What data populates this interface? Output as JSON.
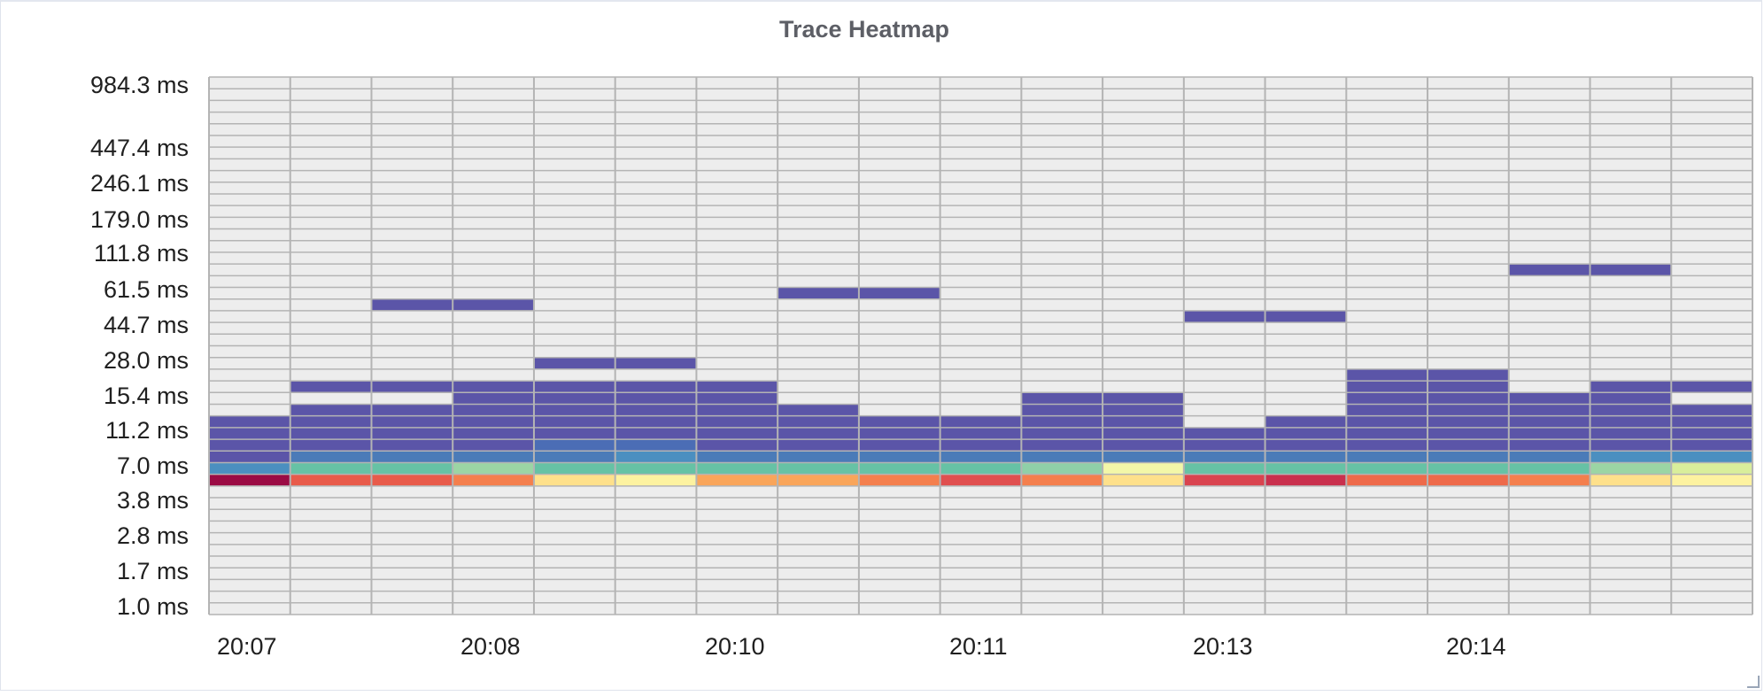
{
  "panel": {
    "title": "Trace Heatmap"
  },
  "chart_data": {
    "type": "heatmap",
    "title": "Trace Heatmap",
    "xlabel": "",
    "ylabel": "",
    "grid": true,
    "legend": "none",
    "y_tick_labels": [
      "1.0 ms",
      "1.7 ms",
      "2.8 ms",
      "3.8 ms",
      "7.0 ms",
      "11.2 ms",
      "15.4 ms",
      "28.0 ms",
      "44.7 ms",
      "61.5 ms",
      "111.8 ms",
      "179.0 ms",
      "246.1 ms",
      "447.4 ms",
      "984.3 ms"
    ],
    "x_tick_labels": [
      "20:07",
      "20:08",
      "20:10",
      "20:11",
      "20:13",
      "20:14"
    ],
    "bucket_count": 46,
    "time_columns": 19,
    "empty_color": "#ededed",
    "cells_note_col_index_base": 0,
    "cells": [
      {
        "col": 0,
        "row": 11,
        "color": "#9b0b44"
      },
      {
        "col": 0,
        "row": 12,
        "color": "#4b8fc0"
      },
      {
        "col": 0,
        "row": 13,
        "color": "#5b55a8"
      },
      {
        "col": 0,
        "row": 14,
        "color": "#5b55a8"
      },
      {
        "col": 0,
        "row": 15,
        "color": "#5b55a8"
      },
      {
        "col": 0,
        "row": 16,
        "color": "#5b55a8"
      },
      {
        "col": 1,
        "row": 11,
        "color": "#e85b4a"
      },
      {
        "col": 1,
        "row": 12,
        "color": "#66c2a5"
      },
      {
        "col": 1,
        "row": 13,
        "color": "#4b7bb8"
      },
      {
        "col": 1,
        "row": 14,
        "color": "#5b55a8"
      },
      {
        "col": 1,
        "row": 15,
        "color": "#5b55a8"
      },
      {
        "col": 1,
        "row": 16,
        "color": "#5b55a8"
      },
      {
        "col": 1,
        "row": 17,
        "color": "#5b55a8"
      },
      {
        "col": 1,
        "row": 19,
        "color": "#5b55a8"
      },
      {
        "col": 2,
        "row": 11,
        "color": "#e85b4a"
      },
      {
        "col": 2,
        "row": 12,
        "color": "#66c2a5"
      },
      {
        "col": 2,
        "row": 13,
        "color": "#4b7bb8"
      },
      {
        "col": 2,
        "row": 14,
        "color": "#5b55a8"
      },
      {
        "col": 2,
        "row": 15,
        "color": "#5b55a8"
      },
      {
        "col": 2,
        "row": 16,
        "color": "#5b55a8"
      },
      {
        "col": 2,
        "row": 17,
        "color": "#5b55a8"
      },
      {
        "col": 2,
        "row": 19,
        "color": "#5b55a8"
      },
      {
        "col": 2,
        "row": 26,
        "color": "#5b55a8"
      },
      {
        "col": 3,
        "row": 11,
        "color": "#f47f4d"
      },
      {
        "col": 3,
        "row": 12,
        "color": "#9bd5a4"
      },
      {
        "col": 3,
        "row": 13,
        "color": "#4b7bb8"
      },
      {
        "col": 3,
        "row": 14,
        "color": "#5b55a8"
      },
      {
        "col": 3,
        "row": 15,
        "color": "#5b55a8"
      },
      {
        "col": 3,
        "row": 16,
        "color": "#5b55a8"
      },
      {
        "col": 3,
        "row": 17,
        "color": "#5b55a8"
      },
      {
        "col": 3,
        "row": 18,
        "color": "#5b55a8"
      },
      {
        "col": 3,
        "row": 19,
        "color": "#5b55a8"
      },
      {
        "col": 3,
        "row": 26,
        "color": "#5b55a8"
      },
      {
        "col": 4,
        "row": 11,
        "color": "#fee08b"
      },
      {
        "col": 4,
        "row": 12,
        "color": "#66c2a5"
      },
      {
        "col": 4,
        "row": 13,
        "color": "#4b7bb8"
      },
      {
        "col": 4,
        "row": 14,
        "color": "#4b6db5"
      },
      {
        "col": 4,
        "row": 15,
        "color": "#5b55a8"
      },
      {
        "col": 4,
        "row": 16,
        "color": "#5b55a8"
      },
      {
        "col": 4,
        "row": 17,
        "color": "#5b55a8"
      },
      {
        "col": 4,
        "row": 18,
        "color": "#5b55a8"
      },
      {
        "col": 4,
        "row": 19,
        "color": "#5b55a8"
      },
      {
        "col": 4,
        "row": 21,
        "color": "#5b55a8"
      },
      {
        "col": 5,
        "row": 11,
        "color": "#fdf2a0"
      },
      {
        "col": 5,
        "row": 12,
        "color": "#66c2a5"
      },
      {
        "col": 5,
        "row": 13,
        "color": "#4b8fc0"
      },
      {
        "col": 5,
        "row": 14,
        "color": "#4b6db5"
      },
      {
        "col": 5,
        "row": 15,
        "color": "#5b55a8"
      },
      {
        "col": 5,
        "row": 16,
        "color": "#5b55a8"
      },
      {
        "col": 5,
        "row": 17,
        "color": "#5b55a8"
      },
      {
        "col": 5,
        "row": 18,
        "color": "#5b55a8"
      },
      {
        "col": 5,
        "row": 19,
        "color": "#5b55a8"
      },
      {
        "col": 5,
        "row": 21,
        "color": "#5b55a8"
      },
      {
        "col": 6,
        "row": 11,
        "color": "#f9a55a"
      },
      {
        "col": 6,
        "row": 12,
        "color": "#66c2a5"
      },
      {
        "col": 6,
        "row": 13,
        "color": "#4b7bb8"
      },
      {
        "col": 6,
        "row": 14,
        "color": "#5b55a8"
      },
      {
        "col": 6,
        "row": 15,
        "color": "#5b55a8"
      },
      {
        "col": 6,
        "row": 16,
        "color": "#5b55a8"
      },
      {
        "col": 6,
        "row": 17,
        "color": "#5b55a8"
      },
      {
        "col": 6,
        "row": 18,
        "color": "#5b55a8"
      },
      {
        "col": 6,
        "row": 19,
        "color": "#5b55a8"
      },
      {
        "col": 7,
        "row": 11,
        "color": "#f9a55a"
      },
      {
        "col": 7,
        "row": 12,
        "color": "#66c2a5"
      },
      {
        "col": 7,
        "row": 13,
        "color": "#4b7bb8"
      },
      {
        "col": 7,
        "row": 14,
        "color": "#5b55a8"
      },
      {
        "col": 7,
        "row": 15,
        "color": "#5b55a8"
      },
      {
        "col": 7,
        "row": 16,
        "color": "#5b55a8"
      },
      {
        "col": 7,
        "row": 17,
        "color": "#5b55a8"
      },
      {
        "col": 7,
        "row": 27,
        "color": "#5b55a8"
      },
      {
        "col": 8,
        "row": 11,
        "color": "#f47f4d"
      },
      {
        "col": 8,
        "row": 12,
        "color": "#66c2a5"
      },
      {
        "col": 8,
        "row": 13,
        "color": "#4b7bb8"
      },
      {
        "col": 8,
        "row": 14,
        "color": "#5b55a8"
      },
      {
        "col": 8,
        "row": 15,
        "color": "#5b55a8"
      },
      {
        "col": 8,
        "row": 16,
        "color": "#5b55a8"
      },
      {
        "col": 8,
        "row": 27,
        "color": "#5b55a8"
      },
      {
        "col": 9,
        "row": 11,
        "color": "#e04f4f"
      },
      {
        "col": 9,
        "row": 12,
        "color": "#66c2a5"
      },
      {
        "col": 9,
        "row": 13,
        "color": "#4b7bb8"
      },
      {
        "col": 9,
        "row": 14,
        "color": "#5b55a8"
      },
      {
        "col": 9,
        "row": 15,
        "color": "#5b55a8"
      },
      {
        "col": 9,
        "row": 16,
        "color": "#5b55a8"
      },
      {
        "col": 10,
        "row": 11,
        "color": "#f47f4d"
      },
      {
        "col": 10,
        "row": 12,
        "color": "#8fd0a8"
      },
      {
        "col": 10,
        "row": 13,
        "color": "#4b7bb8"
      },
      {
        "col": 10,
        "row": 14,
        "color": "#5b55a8"
      },
      {
        "col": 10,
        "row": 15,
        "color": "#5b55a8"
      },
      {
        "col": 10,
        "row": 16,
        "color": "#5b55a8"
      },
      {
        "col": 10,
        "row": 17,
        "color": "#5b55a8"
      },
      {
        "col": 10,
        "row": 18,
        "color": "#5b55a8"
      },
      {
        "col": 11,
        "row": 11,
        "color": "#fee08b"
      },
      {
        "col": 11,
        "row": 12,
        "color": "#f3f7a8"
      },
      {
        "col": 11,
        "row": 13,
        "color": "#4b7bb8"
      },
      {
        "col": 11,
        "row": 14,
        "color": "#5b55a8"
      },
      {
        "col": 11,
        "row": 15,
        "color": "#5b55a8"
      },
      {
        "col": 11,
        "row": 16,
        "color": "#5b55a8"
      },
      {
        "col": 11,
        "row": 17,
        "color": "#5b55a8"
      },
      {
        "col": 11,
        "row": 18,
        "color": "#5b55a8"
      },
      {
        "col": 12,
        "row": 11,
        "color": "#d9444f"
      },
      {
        "col": 12,
        "row": 12,
        "color": "#66c2a5"
      },
      {
        "col": 12,
        "row": 13,
        "color": "#4b7bb8"
      },
      {
        "col": 12,
        "row": 14,
        "color": "#5b55a8"
      },
      {
        "col": 12,
        "row": 15,
        "color": "#5b55a8"
      },
      {
        "col": 12,
        "row": 25,
        "color": "#5b55a8"
      },
      {
        "col": 13,
        "row": 11,
        "color": "#c9304d"
      },
      {
        "col": 13,
        "row": 12,
        "color": "#66c2a5"
      },
      {
        "col": 13,
        "row": 13,
        "color": "#4b7bb8"
      },
      {
        "col": 13,
        "row": 14,
        "color": "#5b55a8"
      },
      {
        "col": 13,
        "row": 15,
        "color": "#5b55a8"
      },
      {
        "col": 13,
        "row": 16,
        "color": "#5b55a8"
      },
      {
        "col": 13,
        "row": 25,
        "color": "#5b55a8"
      },
      {
        "col": 14,
        "row": 11,
        "color": "#ee6a4a"
      },
      {
        "col": 14,
        "row": 12,
        "color": "#66c2a5"
      },
      {
        "col": 14,
        "row": 13,
        "color": "#4b7bb8"
      },
      {
        "col": 14,
        "row": 14,
        "color": "#5b55a8"
      },
      {
        "col": 14,
        "row": 15,
        "color": "#5b55a8"
      },
      {
        "col": 14,
        "row": 16,
        "color": "#5b55a8"
      },
      {
        "col": 14,
        "row": 17,
        "color": "#5b55a8"
      },
      {
        "col": 14,
        "row": 18,
        "color": "#5b55a8"
      },
      {
        "col": 14,
        "row": 19,
        "color": "#5b55a8"
      },
      {
        "col": 14,
        "row": 20,
        "color": "#5b55a8"
      },
      {
        "col": 15,
        "row": 11,
        "color": "#ee6a4a"
      },
      {
        "col": 15,
        "row": 12,
        "color": "#66c2a5"
      },
      {
        "col": 15,
        "row": 13,
        "color": "#4b7bb8"
      },
      {
        "col": 15,
        "row": 14,
        "color": "#5b55a8"
      },
      {
        "col": 15,
        "row": 15,
        "color": "#5b55a8"
      },
      {
        "col": 15,
        "row": 16,
        "color": "#5b55a8"
      },
      {
        "col": 15,
        "row": 17,
        "color": "#5b55a8"
      },
      {
        "col": 15,
        "row": 18,
        "color": "#5b55a8"
      },
      {
        "col": 15,
        "row": 19,
        "color": "#5b55a8"
      },
      {
        "col": 15,
        "row": 20,
        "color": "#5b55a8"
      },
      {
        "col": 16,
        "row": 11,
        "color": "#f47f4d"
      },
      {
        "col": 16,
        "row": 12,
        "color": "#66c2a5"
      },
      {
        "col": 16,
        "row": 13,
        "color": "#4b7bb8"
      },
      {
        "col": 16,
        "row": 14,
        "color": "#5b55a8"
      },
      {
        "col": 16,
        "row": 15,
        "color": "#5b55a8"
      },
      {
        "col": 16,
        "row": 16,
        "color": "#5b55a8"
      },
      {
        "col": 16,
        "row": 17,
        "color": "#5b55a8"
      },
      {
        "col": 16,
        "row": 18,
        "color": "#5b55a8"
      },
      {
        "col": 16,
        "row": 29,
        "color": "#5b55a8"
      },
      {
        "col": 17,
        "row": 11,
        "color": "#fee08b"
      },
      {
        "col": 17,
        "row": 12,
        "color": "#9bd5a4"
      },
      {
        "col": 17,
        "row": 13,
        "color": "#4b8fc0"
      },
      {
        "col": 17,
        "row": 14,
        "color": "#5b55a8"
      },
      {
        "col": 17,
        "row": 15,
        "color": "#5b55a8"
      },
      {
        "col": 17,
        "row": 16,
        "color": "#5b55a8"
      },
      {
        "col": 17,
        "row": 17,
        "color": "#5b55a8"
      },
      {
        "col": 17,
        "row": 18,
        "color": "#5b55a8"
      },
      {
        "col": 17,
        "row": 19,
        "color": "#5b55a8"
      },
      {
        "col": 17,
        "row": 29,
        "color": "#5b55a8"
      },
      {
        "col": 18,
        "row": 11,
        "color": "#fdf2a0"
      },
      {
        "col": 18,
        "row": 12,
        "color": "#d9ee9b"
      },
      {
        "col": 18,
        "row": 13,
        "color": "#4b8fc0"
      },
      {
        "col": 18,
        "row": 14,
        "color": "#5b55a8"
      },
      {
        "col": 18,
        "row": 15,
        "color": "#5b55a8"
      },
      {
        "col": 18,
        "row": 16,
        "color": "#5b55a8"
      },
      {
        "col": 18,
        "row": 17,
        "color": "#5b55a8"
      },
      {
        "col": 18,
        "row": 19,
        "color": "#5b55a8"
      }
    ]
  }
}
